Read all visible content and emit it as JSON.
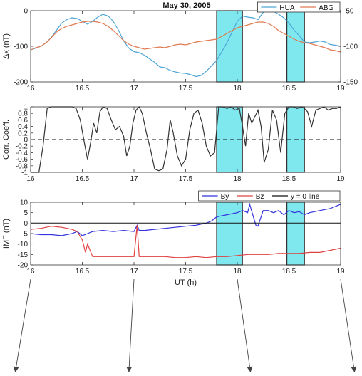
{
  "chart_data": [
    {
      "type": "line",
      "title": "May 30, 2005",
      "xlabel": "",
      "ylabel": "Δx (nT)",
      "y2label": "",
      "xlim": [
        16,
        19
      ],
      "ylim": [
        -200,
        0
      ],
      "y2lim": [
        -150,
        -50
      ],
      "xticks": [
        "16",
        "16.5",
        "17",
        "17.5",
        "18",
        "18.5",
        "19"
      ],
      "yticks": [
        "0",
        "-100",
        "-200"
      ],
      "y2ticks": [
        "-50",
        "-100",
        "-150"
      ],
      "legend_position": "top-right",
      "highlight_intervals": [
        [
          17.8,
          18.05
        ],
        [
          18.48,
          18.65
        ]
      ],
      "series": [
        {
          "name": "HUA",
          "axis": "left",
          "color": "#4da6d8",
          "x": [
            16.0,
            16.05,
            16.1,
            16.15,
            16.2,
            16.25,
            16.3,
            16.35,
            16.4,
            16.45,
            16.5,
            16.55,
            16.6,
            16.65,
            16.7,
            16.75,
            16.8,
            16.85,
            16.9,
            16.95,
            17.0,
            17.05,
            17.1,
            17.15,
            17.2,
            17.25,
            17.3,
            17.35,
            17.4,
            17.45,
            17.5,
            17.55,
            17.6,
            17.65,
            17.7,
            17.75,
            17.8,
            17.85,
            17.9,
            17.95,
            18.0,
            18.05,
            18.1,
            18.15,
            18.2,
            18.25,
            18.3,
            18.35,
            18.4,
            18.45,
            18.5,
            18.55,
            18.6,
            18.65,
            18.7,
            18.75,
            18.8,
            18.85,
            18.9,
            18.95,
            19.0
          ],
          "values": [
            -110,
            -105,
            -100,
            -90,
            -75,
            -55,
            -35,
            -25,
            -20,
            -22,
            -30,
            -38,
            -30,
            -18,
            -10,
            -15,
            -30,
            -55,
            -85,
            -105,
            -115,
            -118,
            -125,
            -135,
            -145,
            -158,
            -160,
            -168,
            -172,
            -175,
            -176,
            -180,
            -185,
            -182,
            -170,
            -155,
            -140,
            -115,
            -90,
            -60,
            -30,
            -15,
            -18,
            -20,
            -25,
            -5,
            5,
            -2,
            -10,
            -20,
            -35,
            -55,
            -70,
            -88,
            -90,
            -88,
            -85,
            -88,
            -95,
            -97,
            -100
          ]
        },
        {
          "name": "ABG",
          "axis": "right",
          "color": "#e07a50",
          "x": [
            16.0,
            16.05,
            16.1,
            16.15,
            16.2,
            16.25,
            16.3,
            16.35,
            16.4,
            16.45,
            16.5,
            16.55,
            16.6,
            16.65,
            16.7,
            16.75,
            16.8,
            16.85,
            16.9,
            16.95,
            17.0,
            17.05,
            17.1,
            17.15,
            17.2,
            17.25,
            17.3,
            17.35,
            17.4,
            17.45,
            17.5,
            17.55,
            17.6,
            17.65,
            17.7,
            17.75,
            17.8,
            17.85,
            17.9,
            17.95,
            18.0,
            18.05,
            18.1,
            18.15,
            18.2,
            18.25,
            18.3,
            18.35,
            18.4,
            18.45,
            18.5,
            18.55,
            18.6,
            18.65,
            18.7,
            18.75,
            18.8,
            18.85,
            18.9,
            18.95,
            19.0
          ],
          "values": [
            -105,
            -102,
            -100,
            -95,
            -88,
            -80,
            -75,
            -72,
            -70,
            -68,
            -66,
            -65,
            -65,
            -66,
            -68,
            -72,
            -78,
            -85,
            -92,
            -97,
            -100,
            -102,
            -104,
            -103,
            -102,
            -101,
            -102,
            -100,
            -98,
            -97,
            -98,
            -96,
            -94,
            -93,
            -92,
            -91,
            -90,
            -86,
            -82,
            -78,
            -74,
            -72,
            -70,
            -68,
            -66,
            -66,
            -68,
            -72,
            -78,
            -82,
            -86,
            -90,
            -93,
            -95,
            -96,
            -98,
            -100,
            -102,
            -105,
            -106,
            -108
          ]
        }
      ]
    },
    {
      "type": "line",
      "title": "",
      "xlabel": "",
      "ylabel": "Corr. Coeff.",
      "xlim": [
        16,
        19
      ],
      "ylim": [
        -1,
        1
      ],
      "xticks": [
        "16",
        "16.5",
        "17",
        "17.5",
        "18",
        "18.5",
        "19"
      ],
      "yticks": [
        "1",
        "0.8",
        "0.6",
        "0.4",
        "0.2",
        "0",
        "-0.2",
        "-0.4",
        "-0.6",
        "-0.8",
        "-1"
      ],
      "reference_line": {
        "y": 0,
        "style": "dashed"
      },
      "highlight_intervals": [
        [
          17.8,
          18.05
        ],
        [
          18.48,
          18.65
        ]
      ],
      "series": [
        {
          "name": "",
          "color": "#333333",
          "x": [
            16.0,
            16.08,
            16.12,
            16.16,
            16.2,
            16.3,
            16.4,
            16.44,
            16.48,
            16.52,
            16.55,
            16.58,
            16.61,
            16.64,
            16.67,
            16.7,
            16.74,
            16.78,
            16.82,
            16.86,
            16.9,
            16.93,
            16.96,
            16.99,
            17.02,
            17.05,
            17.08,
            17.12,
            17.16,
            17.2,
            17.24,
            17.28,
            17.32,
            17.35,
            17.38,
            17.42,
            17.46,
            17.5,
            17.54,
            17.58,
            17.62,
            17.66,
            17.7,
            17.74,
            17.78,
            17.82,
            17.86,
            17.9,
            17.94,
            17.98,
            18.02,
            18.05,
            18.08,
            18.11,
            18.14,
            18.17,
            18.2,
            18.23,
            18.26,
            18.3,
            18.34,
            18.38,
            18.42,
            18.46,
            18.5,
            18.54,
            18.58,
            18.62,
            18.65,
            18.68,
            18.72,
            18.76,
            18.8,
            18.84,
            18.88,
            18.92,
            18.96,
            19.0
          ],
          "values": [
            -1,
            -1,
            -0.2,
            0.95,
            1,
            1,
            1,
            0.95,
            0.6,
            -0.1,
            -0.6,
            -0.1,
            0.5,
            0.2,
            0.85,
            1,
            0.95,
            0.6,
            0.3,
            0.4,
            0.1,
            -0.5,
            -0.2,
            0.5,
            0.9,
            1,
            0.8,
            0.2,
            -0.3,
            -0.9,
            -0.95,
            -0.9,
            -0.3,
            0.6,
            0.2,
            -0.5,
            -0.8,
            -0.6,
            0.3,
            0.8,
            0.9,
            0.5,
            -0.2,
            -0.5,
            -0.4,
            1,
            1,
            0.95,
            1,
            0.9,
            0.95,
            0.4,
            -0.2,
            0.8,
            0.5,
            0.7,
            0.9,
            0.4,
            -0.7,
            -0.3,
            0.9,
            0.6,
            -0.4,
            0.8,
            1,
            1,
            0.95,
            1,
            0.95,
            0.85,
            0.4,
            0.9,
            0.95,
            1,
            0.9,
            0.95,
            0.95,
            1
          ]
        }
      ]
    },
    {
      "type": "line",
      "title": "",
      "xlabel": "UT (h)",
      "ylabel": "IMF (nT)",
      "xlim": [
        16,
        19
      ],
      "ylim": [
        -20,
        10
      ],
      "xticks": [
        "16",
        "16.5",
        "17",
        "17.5",
        "18",
        "18.5",
        "19"
      ],
      "yticks": [
        "10",
        "5",
        "0",
        "-5",
        "-10",
        "-15",
        "-20"
      ],
      "legend_position": "top-right",
      "highlight_intervals": [
        [
          17.8,
          18.05
        ],
        [
          18.48,
          18.65
        ]
      ],
      "series": [
        {
          "name": "By",
          "color": "#3333dd",
          "x": [
            16.0,
            16.1,
            16.2,
            16.3,
            16.4,
            16.45,
            16.5,
            16.55,
            16.6,
            16.7,
            16.8,
            16.9,
            17.0,
            17.03,
            17.05,
            17.1,
            17.2,
            17.3,
            17.4,
            17.5,
            17.6,
            17.7,
            17.75,
            17.8,
            17.9,
            18.0,
            18.05,
            18.1,
            18.12,
            18.15,
            18.18,
            18.2,
            18.25,
            18.3,
            18.35,
            18.4,
            18.45,
            18.5,
            18.55,
            18.6,
            18.65,
            18.7,
            18.8,
            18.9,
            19.0
          ],
          "values": [
            -5,
            -5.5,
            -5.5,
            -6,
            -5,
            -4,
            -6,
            -5,
            -4,
            -3.5,
            -4,
            -3.5,
            -4,
            -1,
            -3.5,
            -3.5,
            -3,
            -2.5,
            -2,
            -1.5,
            -1,
            0,
            1,
            3,
            4,
            5,
            6,
            5,
            9,
            4,
            -1,
            -1.5,
            6,
            6,
            5,
            6,
            4,
            6,
            5,
            5.5,
            4,
            5,
            6,
            7,
            9
          ]
        },
        {
          "name": "Bz",
          "color": "#e04040",
          "x": [
            16.0,
            16.1,
            16.2,
            16.3,
            16.4,
            16.45,
            16.5,
            16.53,
            16.55,
            16.6,
            16.7,
            16.8,
            16.9,
            17.0,
            17.03,
            17.05,
            17.1,
            17.2,
            17.3,
            17.4,
            17.5,
            17.6,
            17.7,
            17.8,
            17.9,
            18.0,
            18.1,
            18.2,
            18.3,
            18.4,
            18.5,
            18.6,
            18.7,
            18.8,
            18.9,
            19.0
          ],
          "values": [
            -3,
            -2.5,
            -1.5,
            -2,
            -3,
            -4,
            -8,
            -14,
            -10,
            -16,
            -16,
            -16,
            -16,
            -16,
            -1,
            -16,
            -16,
            -16,
            -16,
            -16.5,
            -16.5,
            -16,
            -16.5,
            -16,
            -16,
            -15.5,
            -15,
            -15,
            -15,
            -14.5,
            -14.5,
            -14.5,
            -14,
            -14,
            -13,
            -12
          ]
        },
        {
          "name": "y = 0 line",
          "color": "#111111",
          "x": [
            16,
            19
          ],
          "values": [
            0,
            0
          ]
        }
      ]
    }
  ],
  "colors": {
    "highlight_fill": "#7fe8ee",
    "arrow": "#444444"
  }
}
